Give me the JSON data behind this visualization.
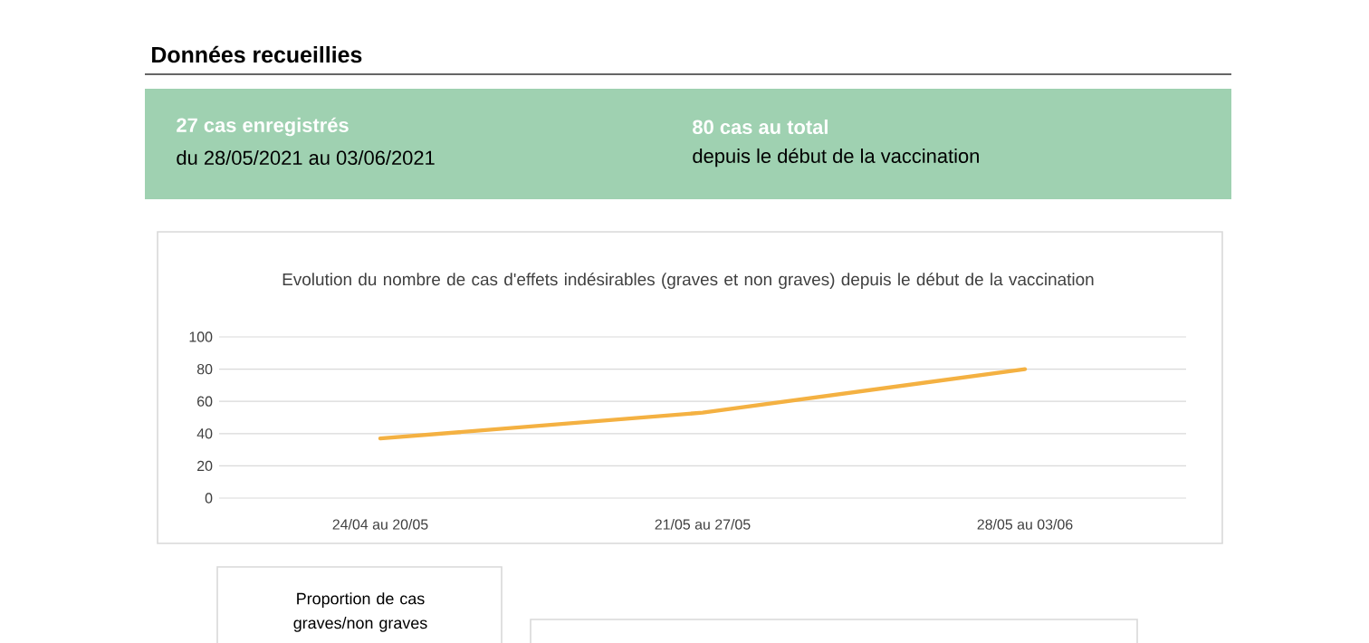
{
  "chart_data": {
    "type": "line",
    "title": "Evolution du nombre de cas d'effets indésirables (graves et non graves) depuis le début de la vaccination",
    "categories": [
      "24/04 au 20/05",
      "21/05 au 27/05",
      "28/05 au 03/06"
    ],
    "series": [
      {
        "color": "#f4b142",
        "values": [
          37,
          53,
          80
        ]
      }
    ],
    "ylim": [
      0,
      100
    ],
    "yticks": [
      0,
      20,
      40,
      60,
      80,
      100
    ],
    "grid": "y",
    "legend": false,
    "marker": "none",
    "line_style": "solid",
    "annotations": [
      "Données recueillies",
      "27 cas enregistrés",
      "du 28/05/2021 au 03/06/2021",
      "80 cas au total",
      "depuis le début de la vaccination",
      "Proportion de cas graves/non graves"
    ]
  }
}
